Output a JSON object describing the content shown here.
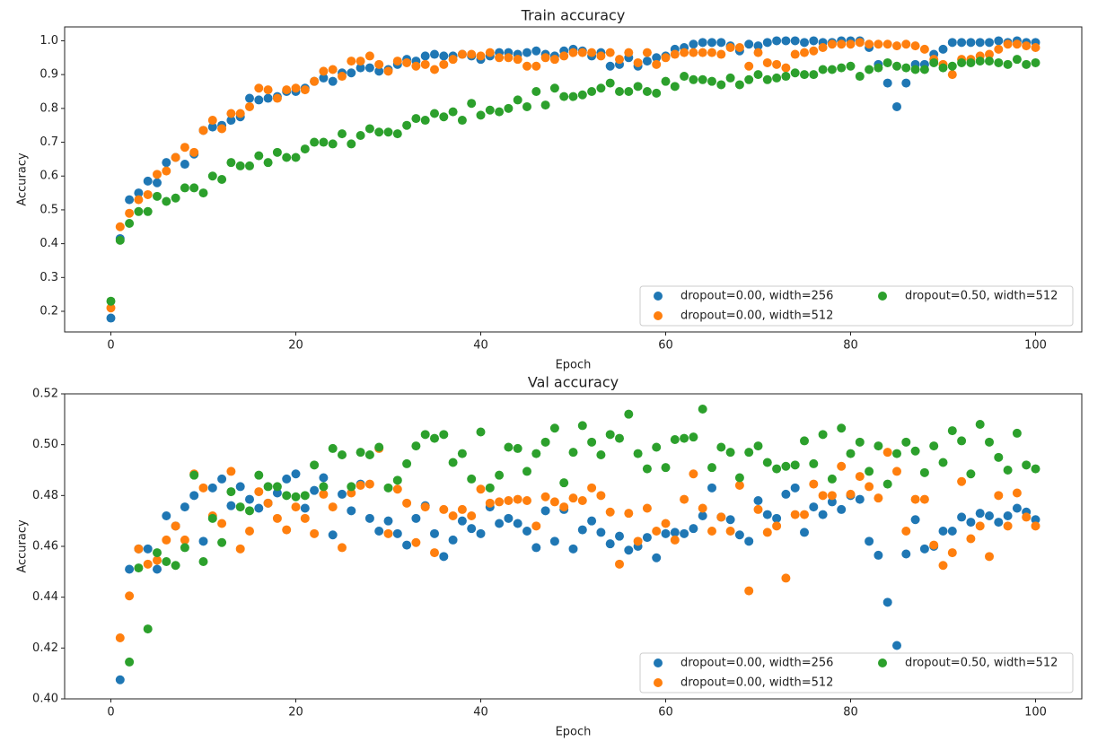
{
  "chart_data": [
    {
      "type": "scatter",
      "title": "Train accuracy",
      "xlabel": "Epoch",
      "ylabel": "Accuracy",
      "x": [
        0,
        1,
        2,
        3,
        4,
        5,
        6,
        7,
        8,
        9,
        10,
        11,
        12,
        13,
        14,
        15,
        16,
        17,
        18,
        19,
        20,
        21,
        22,
        23,
        24,
        25,
        26,
        27,
        28,
        29,
        30,
        31,
        32,
        33,
        34,
        35,
        36,
        37,
        38,
        39,
        40,
        41,
        42,
        43,
        44,
        45,
        46,
        47,
        48,
        49,
        50,
        51,
        52,
        53,
        54,
        55,
        56,
        57,
        58,
        59,
        60,
        61,
        62,
        63,
        64,
        65,
        66,
        67,
        68,
        69,
        70,
        71,
        72,
        73,
        74,
        75,
        76,
        77,
        78,
        79,
        80,
        81,
        82,
        83,
        84,
        85,
        86,
        87,
        88,
        89,
        90,
        91,
        92,
        93,
        94,
        95,
        96,
        97,
        98,
        99,
        100
      ],
      "xlim": [
        -5,
        105
      ],
      "ylim": [
        0.139,
        1.041
      ],
      "xticks": [
        0,
        20,
        40,
        60,
        80,
        100
      ],
      "yticks": [
        0.2,
        0.3,
        0.4,
        0.5,
        0.6,
        0.7,
        0.8,
        0.9,
        {
          "value": 1,
          "label": "1.0"
        }
      ],
      "legend": "lower right",
      "series": [
        {
          "name": "dropout=0.00, width=256",
          "color": "#1f77b4",
          "values": [
            0.18,
            0.415,
            0.53,
            0.55,
            0.585,
            0.58,
            0.64,
            0.655,
            0.635,
            0.665,
            0.735,
            0.745,
            0.75,
            0.765,
            0.775,
            0.83,
            0.825,
            0.83,
            0.835,
            0.85,
            0.85,
            0.86,
            0.88,
            0.89,
            0.88,
            0.905,
            0.905,
            0.92,
            0.92,
            0.91,
            0.915,
            0.93,
            0.945,
            0.94,
            0.955,
            0.96,
            0.955,
            0.955,
            0.96,
            0.955,
            0.945,
            0.955,
            0.965,
            0.965,
            0.96,
            0.965,
            0.97,
            0.96,
            0.955,
            0.97,
            0.975,
            0.97,
            0.955,
            0.965,
            0.925,
            0.93,
            0.95,
            0.925,
            0.94,
            0.95,
            0.955,
            0.975,
            0.98,
            0.99,
            0.995,
            0.995,
            0.995,
            0.985,
            0.97,
            0.99,
            0.985,
            0.995,
            1.0,
            1.0,
            1.0,
            0.995,
            1.0,
            0.995,
            0.995,
            1.0,
            1.0,
            1.0,
            0.98,
            0.93,
            0.875,
            0.805,
            0.875,
            0.93,
            0.93,
            0.96,
            0.975,
            0.995,
            0.995,
            0.995,
            0.995,
            0.995,
            1.0,
            0.995,
            1.0,
            0.995,
            0.995
          ]
        },
        {
          "name": "dropout=0.00, width=512",
          "color": "#ff7f0e",
          "values": [
            0.21,
            0.45,
            0.49,
            0.53,
            0.545,
            0.605,
            0.615,
            0.655,
            0.685,
            0.67,
            0.735,
            0.765,
            0.74,
            0.785,
            0.785,
            0.805,
            0.86,
            0.855,
            0.83,
            0.855,
            0.86,
            0.855,
            0.88,
            0.91,
            0.915,
            0.895,
            0.94,
            0.94,
            0.955,
            0.93,
            0.91,
            0.94,
            0.935,
            0.925,
            0.93,
            0.915,
            0.93,
            0.945,
            0.96,
            0.96,
            0.955,
            0.965,
            0.95,
            0.95,
            0.945,
            0.925,
            0.925,
            0.95,
            0.945,
            0.955,
            0.965,
            0.965,
            0.965,
            0.955,
            0.965,
            0.945,
            0.965,
            0.935,
            0.965,
            0.93,
            0.95,
            0.96,
            0.965,
            0.965,
            0.965,
            0.965,
            0.96,
            0.98,
            0.98,
            0.925,
            0.965,
            0.935,
            0.93,
            0.92,
            0.96,
            0.965,
            0.97,
            0.98,
            0.99,
            0.99,
            0.99,
            0.995,
            0.99,
            0.99,
            0.99,
            0.985,
            0.99,
            0.985,
            0.975,
            0.945,
            0.93,
            0.9,
            0.945,
            0.945,
            0.955,
            0.96,
            0.975,
            0.99,
            0.99,
            0.985,
            0.98
          ]
        },
        {
          "name": "dropout=0.50, width=512",
          "color": "#2ca02c",
          "values": [
            0.23,
            0.41,
            0.46,
            0.495,
            0.495,
            0.54,
            0.525,
            0.535,
            0.565,
            0.565,
            0.55,
            0.6,
            0.59,
            0.64,
            0.63,
            0.63,
            0.66,
            0.64,
            0.67,
            0.655,
            0.655,
            0.68,
            0.7,
            0.7,
            0.695,
            0.725,
            0.695,
            0.72,
            0.74,
            0.73,
            0.73,
            0.725,
            0.75,
            0.77,
            0.765,
            0.785,
            0.775,
            0.79,
            0.765,
            0.815,
            0.78,
            0.795,
            0.79,
            0.8,
            0.825,
            0.805,
            0.85,
            0.81,
            0.86,
            0.835,
            0.835,
            0.84,
            0.85,
            0.86,
            0.875,
            0.85,
            0.85,
            0.865,
            0.85,
            0.845,
            0.88,
            0.865,
            0.895,
            0.885,
            0.885,
            0.88,
            0.87,
            0.89,
            0.87,
            0.885,
            0.9,
            0.885,
            0.89,
            0.895,
            0.905,
            0.9,
            0.9,
            0.915,
            0.915,
            0.92,
            0.925,
            0.895,
            0.915,
            0.92,
            0.935,
            0.925,
            0.92,
            0.915,
            0.915,
            0.935,
            0.92,
            0.925,
            0.935,
            0.935,
            0.94,
            0.94,
            0.935,
            0.93,
            0.945,
            0.93,
            0.935
          ]
        }
      ]
    },
    {
      "type": "scatter",
      "title": "Val accuracy",
      "xlabel": "Epoch",
      "ylabel": "Accuracy",
      "x": [
        0,
        1,
        2,
        3,
        4,
        5,
        6,
        7,
        8,
        9,
        10,
        11,
        12,
        13,
        14,
        15,
        16,
        17,
        18,
        19,
        20,
        21,
        22,
        23,
        24,
        25,
        26,
        27,
        28,
        29,
        30,
        31,
        32,
        33,
        34,
        35,
        36,
        37,
        38,
        39,
        40,
        41,
        42,
        43,
        44,
        45,
        46,
        47,
        48,
        49,
        50,
        51,
        52,
        53,
        54,
        55,
        56,
        57,
        58,
        59,
        60,
        61,
        62,
        63,
        64,
        65,
        66,
        67,
        68,
        69,
        70,
        71,
        72,
        73,
        74,
        75,
        76,
        77,
        78,
        79,
        80,
        81,
        82,
        83,
        84,
        85,
        86,
        87,
        88,
        89,
        90,
        91,
        92,
        93,
        94,
        95,
        96,
        97,
        98,
        99,
        100
      ],
      "xlim": [
        -5,
        105
      ],
      "ylim": [
        0.4,
        0.52
      ],
      "xticks": [
        0,
        20,
        40,
        60,
        80,
        100
      ],
      "yticks": [
        {
          "value": 0.4,
          "label": "0.40"
        },
        {
          "value": 0.42,
          "label": "0.42"
        },
        {
          "value": 0.44,
          "label": "0.44"
        },
        {
          "value": 0.46,
          "label": "0.46"
        },
        {
          "value": 0.48,
          "label": "0.48"
        },
        {
          "value": 0.5,
          "label": "0.50"
        },
        {
          "value": 0.52,
          "label": "0.52"
        }
      ],
      "legend": "lower right",
      "series": [
        {
          "name": "dropout=0.00, width=256",
          "color": "#1f77b4",
          "values": [
            null,
            0.4075,
            0.451,
            0.459,
            0.459,
            0.451,
            0.472,
            0.468,
            0.4755,
            0.48,
            0.462,
            0.483,
            0.4865,
            0.476,
            0.4835,
            0.4785,
            0.475,
            0.477,
            0.481,
            0.4865,
            0.4885,
            0.475,
            0.482,
            0.487,
            0.4645,
            0.4805,
            0.474,
            0.4845,
            0.471,
            0.466,
            0.47,
            0.465,
            0.4605,
            0.471,
            0.476,
            0.465,
            0.456,
            0.4625,
            0.47,
            0.467,
            0.465,
            0.4755,
            0.469,
            0.471,
            0.469,
            0.466,
            0.4595,
            0.474,
            0.462,
            0.4745,
            0.459,
            0.4665,
            0.47,
            0.4655,
            0.461,
            0.464,
            0.4585,
            0.46,
            0.4635,
            0.4555,
            0.465,
            0.4655,
            0.465,
            0.467,
            0.472,
            0.483,
            0.4715,
            0.4705,
            0.4645,
            0.462,
            0.478,
            0.4725,
            0.471,
            0.4805,
            0.483,
            0.4655,
            0.4755,
            0.4725,
            0.4775,
            0.4745,
            0.48,
            0.4785,
            0.462,
            0.4565,
            0.438,
            0.421,
            0.457,
            0.4705,
            0.459,
            0.46,
            0.466,
            0.466,
            0.4715,
            0.4695,
            0.473,
            0.472,
            0.4695,
            0.472,
            0.475,
            0.4735,
            0.4705
          ]
        },
        {
          "name": "dropout=0.00, width=512",
          "color": "#ff7f0e",
          "values": [
            null,
            0.424,
            0.4405,
            0.459,
            0.453,
            0.4545,
            0.4625,
            0.468,
            0.4625,
            0.4885,
            0.483,
            0.472,
            0.469,
            0.4895,
            0.459,
            0.466,
            0.4815,
            0.477,
            0.471,
            0.4665,
            0.4755,
            0.471,
            0.465,
            0.4805,
            0.4755,
            0.4595,
            0.481,
            0.484,
            0.4845,
            0.4985,
            0.465,
            0.4825,
            0.477,
            0.4615,
            0.4755,
            0.4575,
            0.4745,
            0.472,
            0.4745,
            0.472,
            0.4825,
            0.477,
            0.4775,
            0.478,
            0.4785,
            0.478,
            0.468,
            0.4795,
            0.4775,
            0.4755,
            0.479,
            0.478,
            0.483,
            0.48,
            0.4735,
            0.453,
            0.473,
            0.462,
            0.475,
            0.466,
            0.469,
            0.4625,
            0.4785,
            0.4885,
            0.475,
            0.466,
            0.4715,
            0.466,
            0.484,
            0.4425,
            0.4745,
            0.4655,
            0.468,
            0.4475,
            0.4725,
            0.4725,
            0.4845,
            0.48,
            0.48,
            0.4915,
            0.4805,
            0.4875,
            0.4835,
            0.479,
            0.497,
            0.4895,
            0.466,
            0.4785,
            0.4785,
            0.4605,
            0.4525,
            0.4575,
            0.4855,
            0.463,
            0.468,
            0.456,
            0.48,
            0.468,
            0.481,
            0.4715,
            0.468
          ]
        },
        {
          "name": "dropout=0.50, width=512",
          "color": "#2ca02c",
          "values": [
            null,
            null,
            0.4145,
            0.4515,
            0.4275,
            0.4575,
            0.454,
            0.4525,
            0.4595,
            0.488,
            0.454,
            0.471,
            0.4615,
            0.4815,
            0.4755,
            0.474,
            0.488,
            0.4835,
            0.4835,
            0.48,
            0.4795,
            0.48,
            0.492,
            0.4835,
            0.4985,
            0.496,
            0.4835,
            0.497,
            0.496,
            0.499,
            0.483,
            0.486,
            0.4925,
            0.4995,
            0.504,
            0.5025,
            0.504,
            0.493,
            0.4965,
            0.4865,
            0.505,
            0.483,
            0.488,
            0.499,
            0.4985,
            0.4895,
            0.4965,
            0.501,
            0.5065,
            0.485,
            0.497,
            0.5075,
            0.501,
            0.496,
            0.504,
            0.5025,
            0.512,
            0.4965,
            0.4905,
            0.499,
            0.491,
            0.502,
            0.5025,
            0.503,
            0.514,
            0.491,
            0.499,
            0.497,
            0.487,
            0.497,
            0.4995,
            0.493,
            0.4905,
            0.4915,
            0.492,
            0.5015,
            0.4925,
            0.504,
            0.4865,
            0.5065,
            0.4965,
            0.501,
            0.4895,
            0.4995,
            0.4845,
            0.4965,
            0.501,
            0.4975,
            0.489,
            0.4995,
            0.493,
            0.5055,
            0.5015,
            0.4885,
            0.508,
            0.501,
            0.495,
            0.49,
            0.5045,
            0.492,
            0.4905
          ]
        }
      ]
    }
  ]
}
